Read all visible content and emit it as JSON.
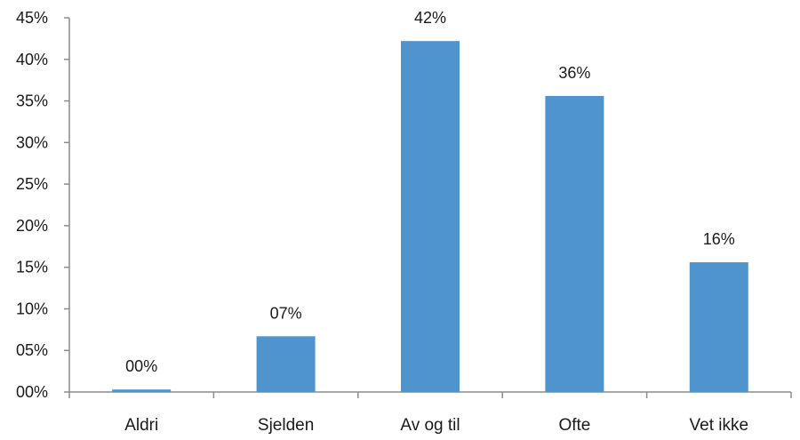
{
  "chart_data": {
    "type": "bar",
    "categories": [
      "Aldri",
      "Sjelden",
      "Av og til",
      "Ofte",
      "Vet ikke"
    ],
    "values": [
      0.3,
      6.7,
      42.2,
      35.6,
      15.6
    ],
    "data_labels": [
      "00%",
      "07%",
      "42%",
      "36%",
      "16%"
    ],
    "y_ticks": [
      0,
      5,
      10,
      15,
      20,
      25,
      30,
      35,
      40,
      45
    ],
    "y_tick_labels": [
      "00%",
      "05%",
      "10%",
      "15%",
      "20%",
      "25%",
      "30%",
      "35%",
      "40%",
      "45%"
    ],
    "ylim": [
      0,
      45
    ],
    "grid": false,
    "title": "",
    "xlabel": "",
    "ylabel": "",
    "bar_color": "#4f94cd"
  }
}
